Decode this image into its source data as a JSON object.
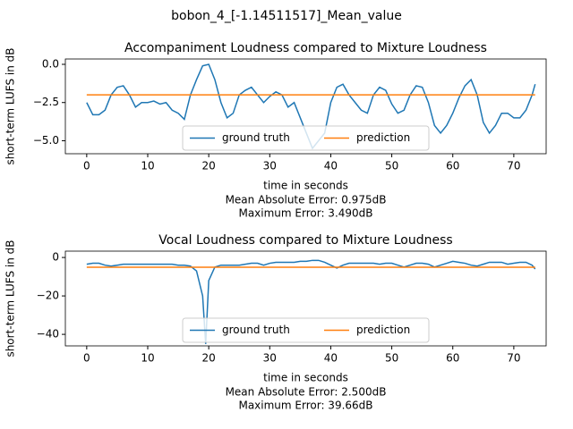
{
  "title": "bobon_4_[-1.14511517]_Mean_value",
  "chart_data": [
    {
      "type": "line",
      "title": "Accompaniment Loudness compared to Mixture Loudness",
      "xlabel": "time in seconds",
      "ylabel": "short-term LUFS in dB",
      "annotations": [
        "Mean Absolute Error: 0.975dB",
        "Maximum Error: 3.490dB"
      ],
      "x": [
        0,
        1,
        2,
        3,
        4,
        5,
        6,
        7,
        8,
        9,
        10,
        11,
        12,
        13,
        14,
        15,
        16,
        17,
        18,
        19,
        20,
        21,
        22,
        23,
        24,
        25,
        26,
        27,
        28,
        29,
        30,
        31,
        32,
        33,
        34,
        35,
        36,
        37,
        38,
        39,
        40,
        41,
        42,
        43,
        44,
        45,
        46,
        47,
        48,
        49,
        50,
        51,
        52,
        53,
        54,
        55,
        56,
        57,
        58,
        59,
        60,
        61,
        62,
        63,
        64,
        65,
        66,
        67,
        68,
        69,
        70,
        71,
        72,
        73,
        73.5
      ],
      "series": [
        {
          "name": "ground truth",
          "color": "#1f77b4",
          "values": [
            -2.5,
            -3.3,
            -3.3,
            -3.0,
            -2.0,
            -1.5,
            -1.4,
            -2.0,
            -2.8,
            -2.5,
            -2.5,
            -2.4,
            -2.6,
            -2.5,
            -3.0,
            -3.2,
            -3.6,
            -2.0,
            -1.0,
            -0.1,
            0.0,
            -1.0,
            -2.5,
            -3.5,
            -3.2,
            -2.0,
            -1.7,
            -1.5,
            -2.0,
            -2.5,
            -2.1,
            -1.8,
            -2.0,
            -2.8,
            -2.5,
            -3.5,
            -4.5,
            -5.5,
            -5.0,
            -4.5,
            -2.5,
            -1.5,
            -1.3,
            -2.0,
            -2.5,
            -3.0,
            -3.2,
            -2.0,
            -1.5,
            -1.7,
            -2.6,
            -3.2,
            -3.0,
            -2.0,
            -1.4,
            -1.5,
            -2.5,
            -4.0,
            -4.5,
            -4.0,
            -3.2,
            -2.2,
            -1.4,
            -1.0,
            -2.0,
            -3.8,
            -4.5,
            -4.0,
            -3.2,
            -3.2,
            -3.5,
            -3.5,
            -3.0,
            -2.0,
            -1.3
          ]
        },
        {
          "name": "prediction",
          "color": "#ff7f0e",
          "values": [
            -2,
            -2,
            -2,
            -2,
            -2,
            -2,
            -2,
            -2,
            -2,
            -2,
            -2,
            -2,
            -2,
            -2,
            -2,
            -2,
            -2,
            -2,
            -2,
            -2,
            -2,
            -2,
            -2,
            -2,
            -2,
            -2,
            -2,
            -2,
            -2,
            -2,
            -2,
            -2,
            -2,
            -2,
            -2,
            -2,
            -2,
            -2,
            -2,
            -2,
            -2,
            -2,
            -2,
            -2,
            -2,
            -2,
            -2,
            -2,
            -2,
            -2,
            -2,
            -2,
            -2,
            -2,
            -2,
            -2,
            -2,
            -2,
            -2,
            -2,
            -2,
            -2,
            -2,
            -2,
            -2,
            -2,
            -2,
            -2,
            -2,
            -2,
            -2,
            -2,
            -2,
            -2,
            -2
          ]
        }
      ],
      "xlim": [
        -3.5,
        75.3
      ],
      "xticks": [
        0,
        10,
        20,
        30,
        40,
        50,
        60,
        70
      ],
      "ylim": [
        -5.85,
        0.35
      ],
      "yticks": [
        {
          "value": 0,
          "label": "0.0"
        },
        {
          "value": -2.5,
          "label": "−2.5"
        },
        {
          "value": -5,
          "label": "−5.0"
        }
      ],
      "legend": "lower center"
    },
    {
      "type": "line",
      "title": "Vocal Loudness compared to Mixture Loudness",
      "xlabel": "time in seconds",
      "ylabel": "short-term LUFS in dB",
      "annotations": [
        "Mean Absolute Error: 2.500dB",
        "Maximum Error: 39.66dB"
      ],
      "x": [
        0,
        1,
        2,
        3,
        4,
        5,
        6,
        7,
        8,
        9,
        10,
        11,
        12,
        13,
        14,
        15,
        16,
        17,
        18,
        19,
        19.5,
        20,
        21,
        22,
        23,
        24,
        25,
        26,
        27,
        28,
        29,
        30,
        31,
        32,
        33,
        34,
        35,
        36,
        37,
        38,
        39,
        40,
        41,
        42,
        43,
        44,
        45,
        46,
        47,
        48,
        49,
        50,
        51,
        52,
        53,
        54,
        55,
        56,
        57,
        58,
        59,
        60,
        61,
        62,
        63,
        64,
        65,
        66,
        67,
        68,
        69,
        70,
        71,
        72,
        73,
        73.5
      ],
      "series": [
        {
          "name": "ground truth",
          "color": "#1f77b4",
          "values": [
            -3.5,
            -3,
            -3,
            -4,
            -4.5,
            -4,
            -3.5,
            -3.5,
            -3.5,
            -3.5,
            -3.5,
            -3.5,
            -3.5,
            -3.5,
            -3.5,
            -4,
            -4,
            -4.5,
            -7,
            -20,
            -45,
            -12,
            -5,
            -4,
            -4,
            -4,
            -4,
            -3.5,
            -3,
            -3,
            -4,
            -3,
            -2.5,
            -2.5,
            -2.5,
            -2.5,
            -2,
            -2,
            -1.5,
            -1.5,
            -2.5,
            -4,
            -5.5,
            -4,
            -3,
            -3,
            -3,
            -3,
            -3,
            -3.5,
            -3,
            -3,
            -4,
            -5,
            -4,
            -3,
            -3,
            -3.5,
            -5,
            -4,
            -3,
            -2,
            -2.5,
            -3,
            -4,
            -4.5,
            -3.5,
            -2.5,
            -2.5,
            -2.5,
            -3.5,
            -3,
            -2.5,
            -2.5,
            -4,
            -6
          ]
        },
        {
          "name": "prediction",
          "color": "#ff7f0e",
          "values": [
            -5.1,
            -5.1,
            -5.1,
            -5.1,
            -5.1,
            -5.1,
            -5.1,
            -5.1,
            -5.1,
            -5.1,
            -5.1,
            -5.1,
            -5.1,
            -5.1,
            -5.1,
            -5.1,
            -5.1,
            -5.1,
            -5.1,
            -5.1,
            -5.1,
            -5.1,
            -5.1,
            -5.1,
            -5.1,
            -5.1,
            -5.1,
            -5.1,
            -5.1,
            -5.1,
            -5.1,
            -5.1,
            -5.1,
            -5.1,
            -5.1,
            -5.1,
            -5.1,
            -5.1,
            -5.1,
            -5.1,
            -5.1,
            -5.1,
            -5.1,
            -5.1,
            -5.1,
            -5.1,
            -5.1,
            -5.1,
            -5.1,
            -5.1,
            -5.1,
            -5.1,
            -5.1,
            -5.1,
            -5.1,
            -5.1,
            -5.1,
            -5.1,
            -5.1,
            -5.1,
            -5.1,
            -5.1,
            -5.1,
            -5.1,
            -5.1,
            -5.1,
            -5.1,
            -5.1,
            -5.1,
            -5.1,
            -5.1,
            -5.1,
            -5.1,
            -5.1,
            -5.1,
            -5.1
          ]
        }
      ],
      "xlim": [
        -3.5,
        75.3
      ],
      "xticks": [
        0,
        10,
        20,
        30,
        40,
        50,
        60,
        70
      ],
      "ylim": [
        -46,
        3.3
      ],
      "yticks": [
        0,
        {
          "value": -20,
          "label": "−20"
        },
        {
          "value": -40,
          "label": "−40"
        }
      ],
      "legend": "lower center"
    }
  ]
}
